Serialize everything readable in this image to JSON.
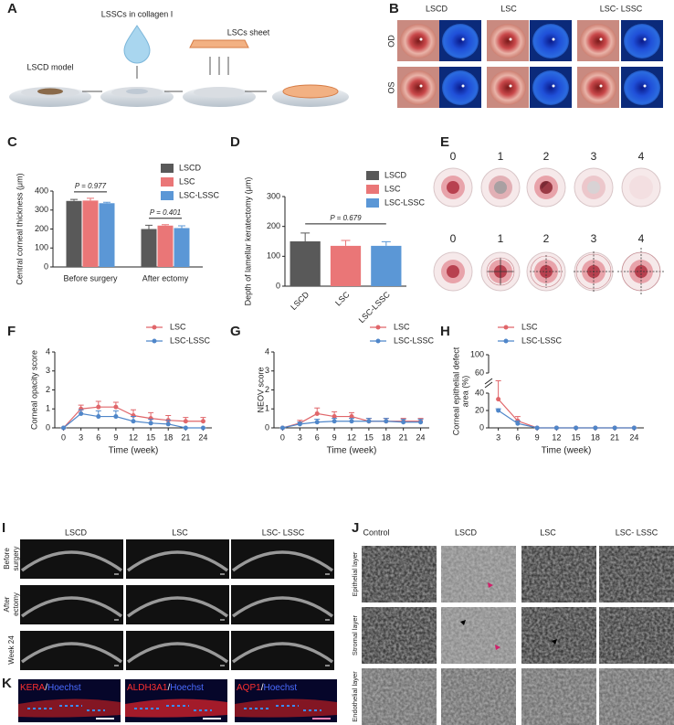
{
  "figure": {
    "panel_letters": [
      "A",
      "B",
      "C",
      "D",
      "E",
      "F",
      "G",
      "H",
      "I",
      "J",
      "K"
    ],
    "a_labels": [
      "LSCD model",
      "LSSCs in collagen I",
      "LSCs sheet"
    ],
    "b_columns": [
      "LSCD",
      "LSC",
      "LSC- LSSC"
    ],
    "b_rows": [
      "OD",
      "OS"
    ],
    "e_scores": [
      "0",
      "1",
      "2",
      "3",
      "4"
    ],
    "i_columns": [
      "LSCD",
      "LSC",
      "LSC- LSSC"
    ],
    "i_rows": [
      [
        "Before",
        "surgery"
      ],
      [
        "After",
        "ectomy"
      ],
      [
        "Week 24"
      ]
    ],
    "j_columns": [
      "Control",
      "LSCD",
      "LSC",
      "LSC- LSSC"
    ],
    "j_rows": [
      "Epithelial layer",
      "Stromal layer",
      "Endothelial layer"
    ],
    "k_stains": [
      [
        "KERA",
        "/",
        "Hoechst"
      ],
      [
        "ALDH3A1",
        "/",
        "Hoechst"
      ],
      [
        "AQP1",
        "/",
        "Hoechst"
      ]
    ]
  },
  "chart_data": [
    {
      "type": "bar",
      "categories": [
        "Before surgery",
        "After ectomy"
      ],
      "series": [
        {
          "name": "LSCD",
          "color": "#595959",
          "values": [
            348,
            200
          ],
          "errors": [
            8,
            20
          ]
        },
        {
          "name": "LSC",
          "color": "#ea7677",
          "values": [
            350,
            218
          ],
          "errors": [
            12,
            5
          ]
        },
        {
          "name": "LSC-LSSC",
          "color": "#5b97d6",
          "values": [
            336,
            205
          ],
          "errors": [
            5,
            12
          ]
        }
      ],
      "ylim": [
        0,
        400
      ],
      "yticks": [
        0,
        100,
        200,
        300,
        400
      ],
      "ylabel": "Central corneal thickness (μm)",
      "annotations": [
        "P = 0.977",
        "P = 0.401"
      ]
    },
    {
      "type": "bar",
      "categories": [
        "LSCD",
        "LSC",
        "LSC-LSSC"
      ],
      "values": [
        150,
        135,
        135
      ],
      "errors": [
        28,
        18,
        14
      ],
      "colors": [
        "#595959",
        "#ea7677",
        "#5b97d6"
      ],
      "ylim": [
        0,
        300
      ],
      "yticks": [
        0,
        100,
        200,
        300
      ],
      "ylabel": "Depth of lamellar keratectomy (μm)",
      "annotations": [
        "P = 0.679"
      ]
    },
    {
      "type": "line",
      "x": [
        0,
        3,
        6,
        9,
        12,
        15,
        18,
        21,
        24
      ],
      "series": [
        {
          "name": "LSC",
          "color": "#e0666a",
          "values": [
            0,
            1.0,
            1.1,
            1.1,
            0.65,
            0.5,
            0.4,
            0.35,
            0.35
          ],
          "errors": [
            0,
            0.2,
            0.3,
            0.25,
            0.3,
            0.3,
            0.25,
            0.2,
            0.2
          ]
        },
        {
          "name": "LSC-LSSC",
          "color": "#4f86c9",
          "values": [
            0,
            0.75,
            0.6,
            0.6,
            0.35,
            0.25,
            0.2,
            0,
            0
          ],
          "errors": [
            0,
            0.2,
            0.3,
            0.3,
            0.25,
            0.2,
            0.2,
            0,
            0
          ]
        }
      ],
      "xlim": [
        -1.5,
        25.5
      ],
      "xticks": [
        0,
        3,
        6,
        9,
        12,
        15,
        18,
        21,
        24
      ],
      "ylim": [
        0,
        4
      ],
      "yticks": [
        0,
        1,
        2,
        3,
        4
      ],
      "xlabel": "Time (week)",
      "ylabel": [
        "Corneal opacity score"
      ]
    },
    {
      "type": "line",
      "x": [
        0,
        3,
        6,
        9,
        12,
        15,
        18,
        21,
        24
      ],
      "series": [
        {
          "name": "LSC",
          "color": "#e0666a",
          "values": [
            0,
            0.25,
            0.75,
            0.6,
            0.6,
            0.35,
            0.35,
            0.35,
            0.35
          ],
          "errors": [
            0,
            0.15,
            0.3,
            0.25,
            0.2,
            0.15,
            0.15,
            0.15,
            0.15
          ]
        },
        {
          "name": "LSC-LSSC",
          "color": "#4f86c9",
          "values": [
            0,
            0.2,
            0.3,
            0.35,
            0.35,
            0.35,
            0.35,
            0.3,
            0.3
          ],
          "errors": [
            0,
            0.1,
            0.15,
            0.15,
            0.15,
            0.15,
            0.15,
            0.15,
            0.15
          ]
        }
      ],
      "xlim": [
        -1.5,
        25.5
      ],
      "xticks": [
        0,
        3,
        6,
        9,
        12,
        15,
        18,
        21,
        24
      ],
      "ylim": [
        0,
        4
      ],
      "yticks": [
        0,
        1,
        2,
        3,
        4
      ],
      "xlabel": "Time (week)",
      "ylabel": [
        "NEOV score"
      ]
    },
    {
      "type": "line",
      "x": [
        3,
        6,
        9,
        12,
        15,
        18,
        21,
        24
      ],
      "series": [
        {
          "name": "LSC",
          "color": "#e0666a",
          "values": [
            33,
            8,
            0,
            0,
            0,
            0,
            0,
            0
          ],
          "errors": [
            10,
            5,
            0,
            0,
            0,
            0,
            0,
            0
          ]
        },
        {
          "name": "LSC-LSSC",
          "color": "#4f86c9",
          "values": [
            20,
            5,
            0,
            0,
            0,
            0,
            0,
            0
          ],
          "errors": [
            2,
            3,
            0,
            0,
            0,
            0,
            0,
            0
          ]
        }
      ],
      "xlim": [
        1.5,
        25.5
      ],
      "xticks": [
        3,
        6,
        9,
        12,
        15,
        18,
        21,
        24
      ],
      "ylim": [
        0,
        100
      ],
      "yticks": [
        0,
        20,
        40,
        60,
        100
      ],
      "ybreak": [
        40,
        60
      ],
      "xlabel": "Time (week)",
      "ylabel": [
        "Corneal epithelial defect",
        "area (%)"
      ]
    }
  ]
}
